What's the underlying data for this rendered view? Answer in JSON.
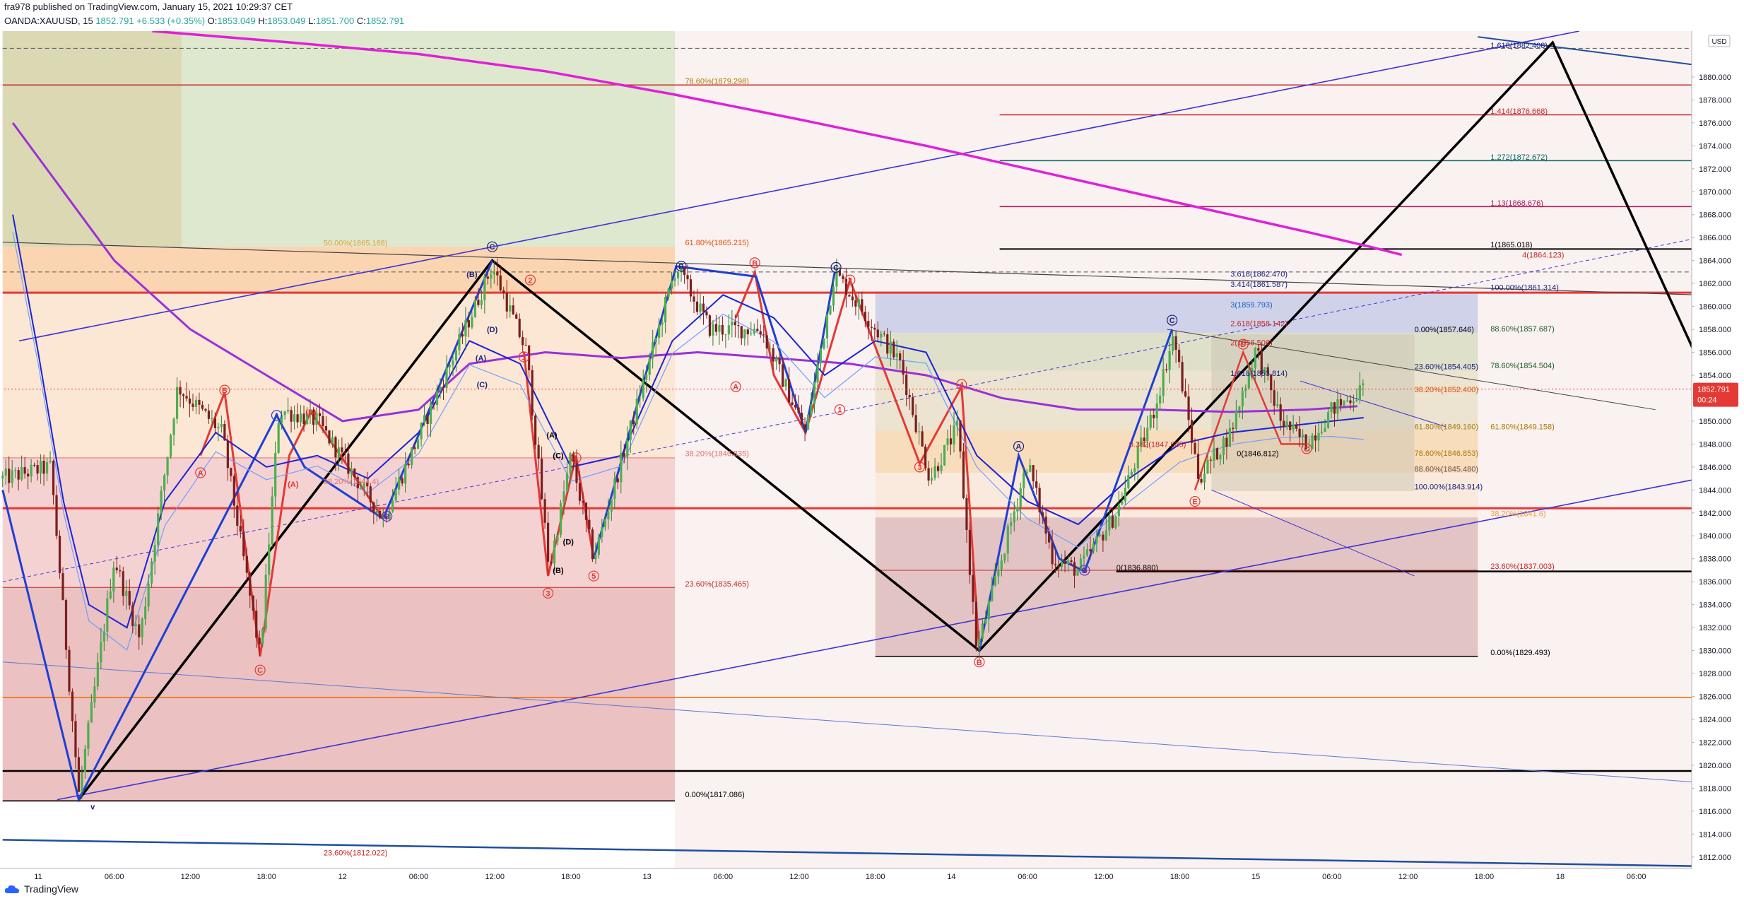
{
  "header": {
    "publisher_line": "fra978 published on TradingView.com, January 15, 2021 10:29:37 CET",
    "symbol": "OANDA:XAUUSD, 15",
    "last": "1852.791",
    "change": "+6.533 (+0.35%)",
    "o_label": "O:",
    "o_value": "1853.049",
    "h_label": "H:",
    "h_value": "1853.049",
    "l_label": "L:",
    "l_value": "1851.700",
    "c_label": "C:",
    "c_value": "1852.791"
  },
  "footer": {
    "brand": "TradingView"
  },
  "chart_data": {
    "type": "candlestick",
    "symbol": "OANDA:XAUUSD",
    "timeframe": "15",
    "currency": "USD",
    "ylim": [
      1811,
      1884
    ],
    "y_ticks": [
      1812,
      1814,
      1816,
      1818,
      1820,
      1822,
      1824,
      1826,
      1828,
      1830,
      1832,
      1834,
      1836,
      1838,
      1840,
      1842,
      1844,
      1846,
      1848,
      1850,
      1852,
      1854,
      1856,
      1858,
      1860,
      1862,
      1864,
      1866,
      1868,
      1870,
      1872,
      1874,
      1876,
      1878,
      1880
    ],
    "x_ticks": [
      {
        "t": 0,
        "label": "11"
      },
      {
        "t": 6,
        "label": "06:00"
      },
      {
        "t": 12,
        "label": "12:00"
      },
      {
        "t": 18,
        "label": "18:00"
      },
      {
        "t": 24,
        "label": "12"
      },
      {
        "t": 30,
        "label": "06:00"
      },
      {
        "t": 36,
        "label": "12:00"
      },
      {
        "t": 42,
        "label": "18:00"
      },
      {
        "t": 48,
        "label": "13"
      },
      {
        "t": 54,
        "label": "06:00"
      },
      {
        "t": 60,
        "label": "12:00"
      },
      {
        "t": 66,
        "label": "18:00"
      },
      {
        "t": 72,
        "label": "14"
      },
      {
        "t": 78,
        "label": "06:00"
      },
      {
        "t": 84,
        "label": "12:00"
      },
      {
        "t": 90,
        "label": "18:00"
      },
      {
        "t": 96,
        "label": "15"
      },
      {
        "t": 102,
        "label": "06:00"
      },
      {
        "t": 108,
        "label": "12:00"
      },
      {
        "t": 114,
        "label": "18:00"
      },
      {
        "t": 120,
        "label": "18"
      },
      {
        "t": 126,
        "label": "06:00"
      },
      {
        "t": 132,
        "label": "12:00"
      }
    ],
    "last_price": "1852.791",
    "countdown": "00:24",
    "fib_labels": [
      {
        "t": 114.5,
        "y": 1882.408,
        "text": "1.618(1882.408)",
        "color": "#1a237e"
      },
      {
        "t": 51,
        "y": 1879.298,
        "text": "78.60%(1879.298)",
        "color": "#b07a00"
      },
      {
        "t": 114.5,
        "y": 1876.668,
        "text": "1.414(1876.668)",
        "color": "#c62828"
      },
      {
        "t": 114.5,
        "y": 1872.672,
        "text": "1.272(1872.672)",
        "color": "#00695c"
      },
      {
        "t": 114.5,
        "y": 1868.676,
        "text": "1.13(1868.676)",
        "color": "#ad1457"
      },
      {
        "t": 114.5,
        "y": 1865.018,
        "text": "1(1865.018)",
        "color": "#000000"
      },
      {
        "t": 22.5,
        "y": 1865.188,
        "text": "50.00%(1865.188)",
        "color": "#e6a23c"
      },
      {
        "t": 51,
        "y": 1865.215,
        "text": "61.80%(1865.215)",
        "color": "#e65100"
      },
      {
        "t": 117,
        "y": 1864.123,
        "text": "4(1864.123)",
        "color": "#c62828"
      },
      {
        "t": 94,
        "y": 1862.47,
        "text": "3.618(1862.470)",
        "color": "#1a237e"
      },
      {
        "t": 94,
        "y": 1861.587,
        "text": "3.414(1861.587)",
        "color": "#1a237e"
      },
      {
        "t": 114.5,
        "y": 1861.314,
        "text": "100.00%(1861.314)",
        "color": "#1a237e"
      },
      {
        "t": 94,
        "y": 1859.793,
        "text": "3(1859.793)",
        "color": "#1565c0"
      },
      {
        "t": 94,
        "y": 1858.142,
        "text": "2.618(1858.142)",
        "color": "#c62828"
      },
      {
        "t": 108.5,
        "y": 1857.646,
        "text": "0.00%(1857.646)",
        "color": "#000000"
      },
      {
        "t": 114.5,
        "y": 1857.687,
        "text": "88.60%(1857.687)",
        "color": "#1b5e20"
      },
      {
        "t": 94,
        "y": 1856.506,
        "text": "2(1856.506)",
        "color": "#c62828"
      },
      {
        "t": 108.5,
        "y": 1854.405,
        "text": "23.60%(1854.405)",
        "color": "#1a237e"
      },
      {
        "t": 114.5,
        "y": 1854.504,
        "text": "78.60%(1854.504)",
        "color": "#1b5e20"
      },
      {
        "t": 94,
        "y": 1853.814,
        "text": "1.618(1853.814)",
        "color": "#1a237e"
      },
      {
        "t": 108.5,
        "y": 1852.4,
        "text": "38.20%(1852.400)",
        "color": "#e65100"
      },
      {
        "t": 108.5,
        "y": 1849.16,
        "text": "61.80%(1849.160)",
        "color": "#b07a00"
      },
      {
        "t": 114.5,
        "y": 1849.158,
        "text": "61.80%(1849.158)",
        "color": "#b07a00"
      },
      {
        "t": 86,
        "y": 1847.635,
        "text": "0.382(1847.635)",
        "color": "#c62828"
      },
      {
        "t": 94.5,
        "y": 1846.812,
        "text": "0(1846.812)",
        "color": "#000000"
      },
      {
        "t": 108.5,
        "y": 1846.853,
        "text": "78.60%(1846.853)",
        "color": "#b07a00"
      },
      {
        "t": 51,
        "y": 1846.835,
        "text": "38.20%(1846.835)",
        "color": "#e57373"
      },
      {
        "t": 108.5,
        "y": 1845.48,
        "text": "88.60%(1845.480)",
        "color": "#6d4c41"
      },
      {
        "t": 22.5,
        "y": 1844.4,
        "text": "38.20%(1844.4)",
        "color": "#e57373"
      },
      {
        "t": 108.5,
        "y": 1843.914,
        "text": "100.00%(1843.914)",
        "color": "#1a237e"
      },
      {
        "t": 114.5,
        "y": 1841.6,
        "text": "38.20%(1841.6)",
        "color": "#e6a23c"
      },
      {
        "t": 85,
        "y": 1836.88,
        "text": "0(1836.880)",
        "color": "#000000"
      },
      {
        "t": 114.5,
        "y": 1837.003,
        "text": "23.60%(1837.003)",
        "color": "#c62828"
      },
      {
        "t": 51,
        "y": 1835.465,
        "text": "23.60%(1835.465)",
        "color": "#c62828"
      },
      {
        "t": 114.5,
        "y": 1829.493,
        "text": "0.00%(1829.493)",
        "color": "#000000"
      },
      {
        "t": 51,
        "y": 1817.086,
        "text": "0.00%(1817.086)",
        "color": "#000000"
      },
      {
        "t": 22.5,
        "y": 1812.022,
        "text": "23.60%(1812.022)",
        "color": "#c62828"
      }
    ],
    "wave_labels": [
      {
        "t": 4.3,
        "y": 1816.4,
        "text": "v",
        "color": "#1a237e"
      },
      {
        "t": 17.5,
        "y": 1828.3,
        "text": "C",
        "color": "#e53935"
      },
      {
        "t": 12.8,
        "y": 1845.5,
        "text": "A",
        "color": "#e53935"
      },
      {
        "t": 14.7,
        "y": 1852.7,
        "text": "B",
        "color": "#e53935"
      },
      {
        "t": 18.8,
        "y": 1850.5,
        "text": "A",
        "color": "#1e3fd6"
      },
      {
        "t": 21.5,
        "y": 1850.8,
        "text": "(B)",
        "color": "#e53935"
      },
      {
        "t": 20.1,
        "y": 1844.5,
        "text": "(A)",
        "color": "#e53935"
      },
      {
        "t": 27.5,
        "y": 1841.7,
        "text": "B",
        "color": "#5e35b1"
      },
      {
        "t": 35.8,
        "y": 1865.2,
        "text": "C",
        "color": "#1a237e"
      },
      {
        "t": 34.2,
        "y": 1862.8,
        "text": "(B)",
        "color": "#1a237e"
      },
      {
        "t": 34.9,
        "y": 1855.5,
        "text": "(A)",
        "color": "#1a237e"
      },
      {
        "t": 35.0,
        "y": 1853.2,
        "text": "(C)",
        "color": "#1a237e"
      },
      {
        "t": 35.8,
        "y": 1858.0,
        "text": "(D)",
        "color": "#1a237e"
      },
      {
        "t": 38.8,
        "y": 1862.3,
        "text": "2",
        "color": "#e53935"
      },
      {
        "t": 38.3,
        "y": 1855.6,
        "text": "1",
        "color": "#e53935"
      },
      {
        "t": 40.2,
        "y": 1835.0,
        "text": "3",
        "color": "#e53935"
      },
      {
        "t": 40.5,
        "y": 1848.8,
        "text": "(A)",
        "color": "#000000"
      },
      {
        "t": 41.0,
        "y": 1847.0,
        "text": "(C)",
        "color": "#000000"
      },
      {
        "t": 41.8,
        "y": 1839.5,
        "text": "(D)",
        "color": "#000000"
      },
      {
        "t": 41.0,
        "y": 1837.0,
        "text": "(B)",
        "color": "#000000"
      },
      {
        "t": 42.4,
        "y": 1846.8,
        "text": "4",
        "color": "#e53935"
      },
      {
        "t": 43.8,
        "y": 1836.5,
        "text": "5",
        "color": "#e53935"
      },
      {
        "t": 50.7,
        "y": 1863.5,
        "text": "B",
        "color": "#1a237e"
      },
      {
        "t": 56.5,
        "y": 1863.8,
        "text": "B",
        "color": "#e53935"
      },
      {
        "t": 55.0,
        "y": 1853.0,
        "text": "A",
        "color": "#e53935"
      },
      {
        "t": 62.9,
        "y": 1863.4,
        "text": "C",
        "color": "#1a237e"
      },
      {
        "t": 64.0,
        "y": 1862.3,
        "text": "2",
        "color": "#e53935"
      },
      {
        "t": 63.2,
        "y": 1851.0,
        "text": "1",
        "color": "#e53935"
      },
      {
        "t": 69.5,
        "y": 1846.0,
        "text": "3",
        "color": "#e53935"
      },
      {
        "t": 72.8,
        "y": 1853.2,
        "text": "4",
        "color": "#e53935"
      },
      {
        "t": 74.2,
        "y": 1829.0,
        "text": "B",
        "color": "#e53935"
      },
      {
        "t": 77.3,
        "y": 1847.8,
        "text": "A",
        "color": "#1a237e"
      },
      {
        "t": 82.5,
        "y": 1837.0,
        "text": "B",
        "color": "#5e35b1"
      },
      {
        "t": 89.4,
        "y": 1858.8,
        "text": "C",
        "color": "#1a237e"
      },
      {
        "t": 91.2,
        "y": 1843.0,
        "text": "E",
        "color": "#e53935"
      },
      {
        "t": 95.0,
        "y": 1856.7,
        "text": "D",
        "color": "#e53935"
      },
      {
        "t": 100.0,
        "y": 1847.6,
        "text": "C",
        "color": "#e53935"
      }
    ]
  }
}
